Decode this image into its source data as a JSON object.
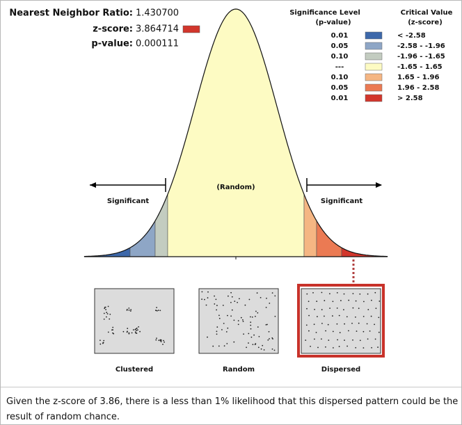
{
  "header": {
    "ratio_label": "Nearest Neighbor Ratio:",
    "ratio_value": "1.430700",
    "z_label": "z-score:",
    "z_value": "3.864714",
    "p_label": "p-value:",
    "p_value": "0.000111"
  },
  "legend": {
    "significance_title": "Significance Level",
    "significance_unit": "(p-value)",
    "critical_title": "Critical Value",
    "critical_unit": "(z-score)",
    "rows": [
      {
        "p": "0.01",
        "z": "< -2.58",
        "color": "#3d68aa"
      },
      {
        "p": "0.05",
        "z": "-2.58 - -1.96",
        "color": "#8ea6c6"
      },
      {
        "p": "0.10",
        "z": "-1.96 - -1.65",
        "color": "#c3ccc0"
      },
      {
        "p": "---",
        "z": "-1.65 - 1.65",
        "color": "#fdfbc3"
      },
      {
        "p": "0.10",
        "z": "1.65 - 1.96",
        "color": "#f5b683"
      },
      {
        "p": "0.05",
        "z": "1.96 - 2.58",
        "color": "#eb7a53"
      },
      {
        "p": "0.01",
        "z": "> 2.58",
        "color": "#d2362c"
      }
    ]
  },
  "curve": {
    "center_label": "(Random)",
    "left_label": "Significant",
    "right_label": "Significant"
  },
  "patterns": [
    {
      "label": "Clustered"
    },
    {
      "label": "Random"
    },
    {
      "label": "Dispersed"
    }
  ],
  "summary": "Given the z-score of 3.86, there is a less than 1% likelihood that this dispersed pattern could be the result of random chance."
}
